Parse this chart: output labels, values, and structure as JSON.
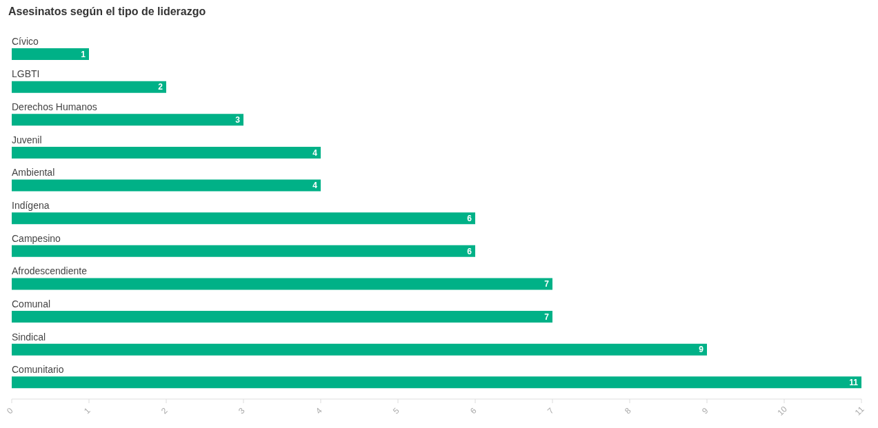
{
  "chart_data": {
    "type": "bar",
    "orientation": "horizontal",
    "title": "Asesinatos según el tipo de liderazgo",
    "categories": [
      "Cívico",
      "LGBTI",
      "Derechos Humanos",
      "Juvenil",
      "Ambiental",
      "Indígena",
      "Campesino",
      "Afrodescendiente",
      "Comunal",
      "Sindical",
      "Comunitario"
    ],
    "values": [
      1,
      2,
      3,
      4,
      4,
      6,
      6,
      7,
      7,
      9,
      11
    ],
    "color": "#00b187",
    "xlim": [
      0,
      11
    ],
    "xticks": [
      0,
      1,
      2,
      3,
      4,
      5,
      6,
      7,
      8,
      9,
      10,
      11
    ],
    "data_labels": true,
    "grid": false,
    "legend": false
  }
}
